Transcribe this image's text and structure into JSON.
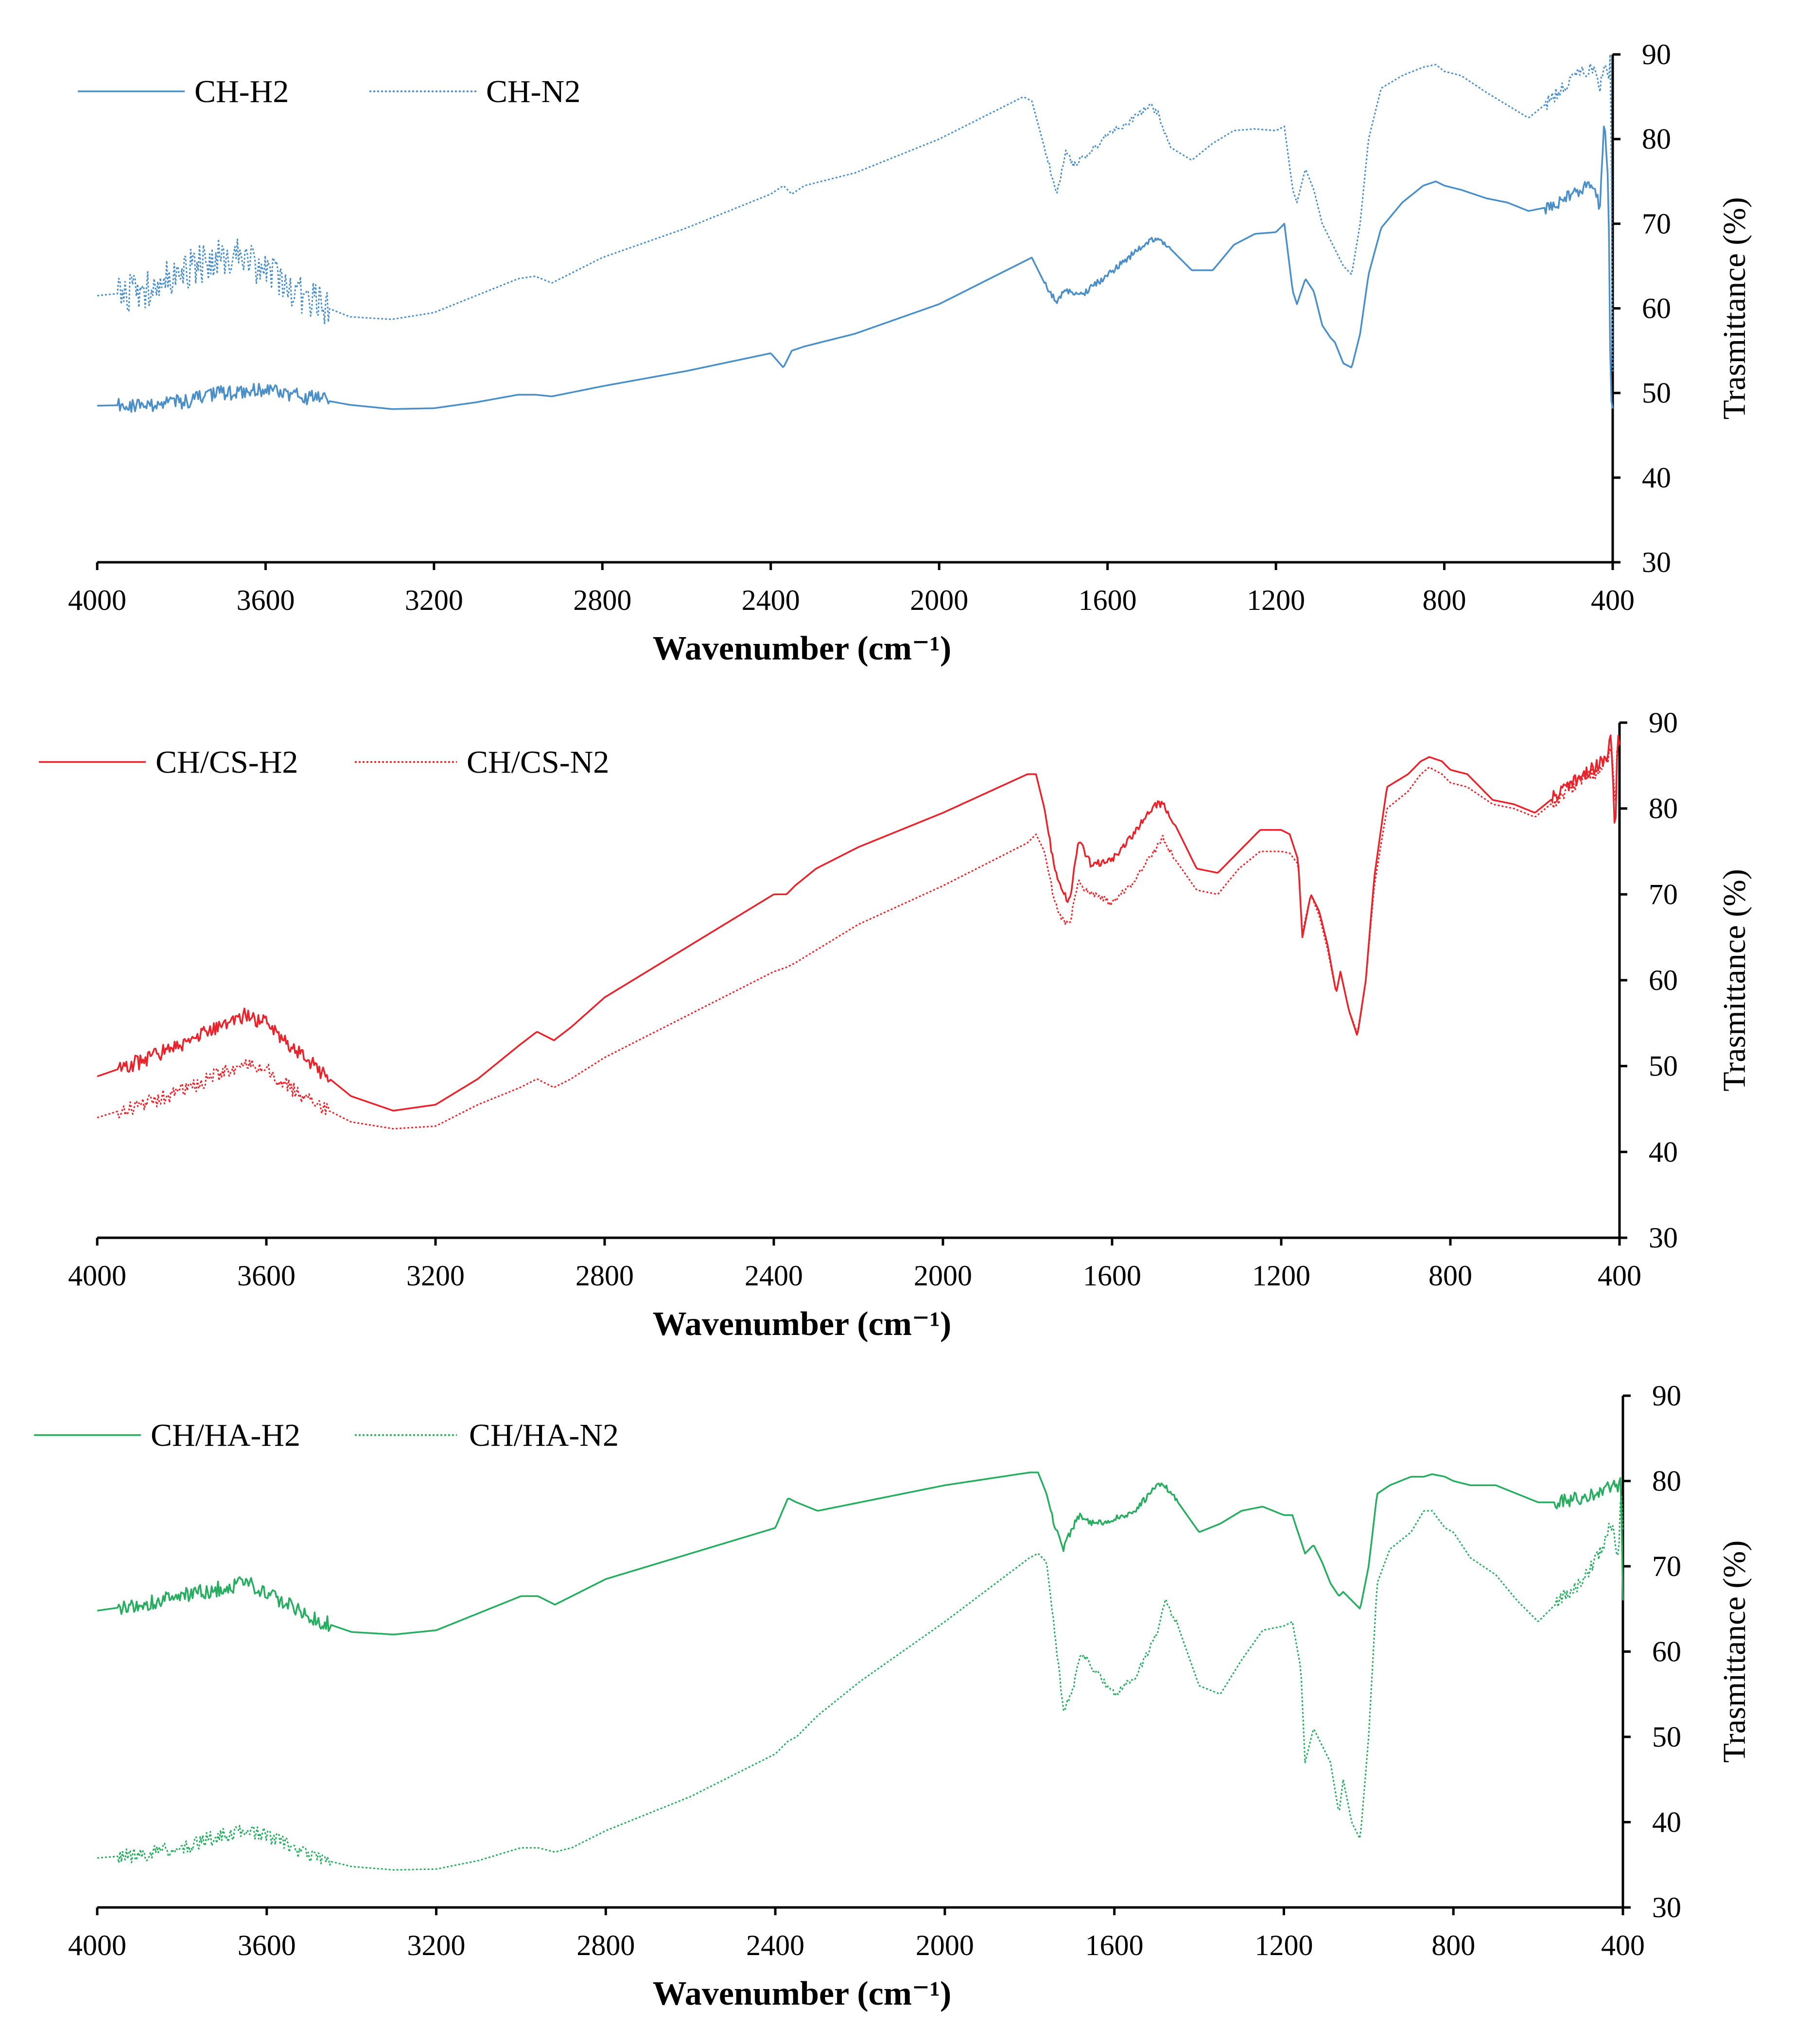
{
  "chart_data": [
    {
      "type": "line",
      "xlabel": "Wavenumber (cm⁻¹)",
      "ylabel": "Trasmittance (%)",
      "xlim": [
        4000,
        400
      ],
      "ylim": [
        30,
        90
      ],
      "x_ticks": [
        "4000",
        "3600",
        "3200",
        "2800",
        "2400",
        "2000",
        "1600",
        "1200",
        "800",
        "400"
      ],
      "y_ticks": [
        "30",
        "40",
        "50",
        "60",
        "70",
        "80",
        "90"
      ],
      "y_axis_side": "right",
      "legend_position": "top-left",
      "color": "#4a8fc8",
      "series": [
        {
          "name": "CH-H2",
          "style": "solid",
          "x": [
            4000,
            3900,
            3800,
            3700,
            3600,
            3500,
            3400,
            3300,
            3200,
            3100,
            3000,
            2960,
            2920,
            2800,
            2600,
            2400,
            2370,
            2350,
            2320,
            2200,
            2000,
            1800,
            1780,
            1750,
            1720,
            1700,
            1680,
            1650,
            1600,
            1550,
            1500,
            1480,
            1450,
            1400,
            1350,
            1300,
            1250,
            1200,
            1180,
            1160,
            1150,
            1130,
            1110,
            1090,
            1070,
            1060,
            1040,
            1020,
            1000,
            980,
            950,
            900,
            850,
            820,
            800,
            760,
            700,
            650,
            600,
            550,
            500,
            450,
            430,
            420,
            410,
            405,
            400
          ],
          "y": [
            48.5,
            48.6,
            49.0,
            50.0,
            50.3,
            49.5,
            48.6,
            48.1,
            48.2,
            48.9,
            49.8,
            49.8,
            49.6,
            50.8,
            52.6,
            54.7,
            53.0,
            55.0,
            55.5,
            57.0,
            60.5,
            65.5,
            66.0,
            63.0,
            60.5,
            62.5,
            61.5,
            62.0,
            64.0,
            66.0,
            68.0,
            68.5,
            67.0,
            64.5,
            64.5,
            67.5,
            68.8,
            69.0,
            70.0,
            62.0,
            60.5,
            63.5,
            62.0,
            58.0,
            56.5,
            56.0,
            53.5,
            53.0,
            57.0,
            64.0,
            69.5,
            72.5,
            74.5,
            75.0,
            74.5,
            74.0,
            73.0,
            72.5,
            71.5,
            72.0,
            73.5,
            74.5,
            72.0,
            82.0,
            74.0,
            50.0,
            48.0
          ]
        },
        {
          "name": "CH-N2",
          "style": "dotted",
          "x": [
            4000,
            3900,
            3800,
            3700,
            3650,
            3600,
            3500,
            3400,
            3300,
            3200,
            3100,
            3000,
            2960,
            2920,
            2800,
            2600,
            2400,
            2370,
            2350,
            2320,
            2200,
            2000,
            1800,
            1780,
            1750,
            1720,
            1700,
            1680,
            1650,
            1600,
            1550,
            1500,
            1480,
            1450,
            1400,
            1350,
            1300,
            1250,
            1200,
            1180,
            1160,
            1150,
            1130,
            1110,
            1090,
            1070,
            1060,
            1040,
            1020,
            1000,
            980,
            950,
            900,
            850,
            820,
            800,
            760,
            700,
            650,
            600,
            550,
            500,
            450,
            430,
            420,
            410,
            405,
            400
          ],
          "y": [
            61.5,
            62.0,
            64.5,
            66.0,
            66.0,
            64.5,
            61.0,
            59.0,
            58.7,
            59.5,
            61.5,
            63.5,
            63.8,
            63.0,
            66.0,
            69.5,
            73.5,
            74.5,
            73.5,
            74.5,
            76.0,
            80.0,
            85.0,
            84.5,
            79.0,
            73.5,
            78.5,
            77.0,
            78.0,
            80.5,
            82.0,
            84.0,
            83.0,
            79.0,
            77.5,
            79.5,
            81.0,
            81.2,
            81.0,
            81.5,
            74.0,
            72.5,
            76.5,
            74.0,
            70.0,
            68.0,
            67.0,
            65.0,
            64.0,
            70.0,
            80.0,
            86.0,
            87.5,
            88.5,
            88.8,
            88.0,
            87.5,
            85.5,
            84.0,
            82.5,
            84.5,
            87.0,
            88.5,
            86.0,
            89.0,
            87.0,
            90.0,
            52.0
          ]
        }
      ]
    },
    {
      "type": "line",
      "xlabel": "Wavenumber (cm⁻¹)",
      "ylabel": "Trasmittance (%)",
      "xlim": [
        4000,
        400
      ],
      "ylim": [
        30,
        90
      ],
      "x_ticks": [
        "4000",
        "3600",
        "3200",
        "2800",
        "2400",
        "2000",
        "1600",
        "1200",
        "800",
        "400"
      ],
      "y_ticks": [
        "30",
        "40",
        "50",
        "60",
        "70",
        "80",
        "90"
      ],
      "y_axis_side": "right",
      "legend_position": "top-left",
      "color": "#e8232b",
      "series": [
        {
          "name": "CH/CS-H2",
          "style": "solid",
          "x": [
            4000,
            3900,
            3800,
            3700,
            3650,
            3600,
            3500,
            3400,
            3300,
            3200,
            3100,
            3000,
            2960,
            2920,
            2880,
            2800,
            2600,
            2400,
            2370,
            2350,
            2300,
            2200,
            2000,
            1800,
            1780,
            1760,
            1740,
            1720,
            1700,
            1680,
            1650,
            1600,
            1550,
            1500,
            1480,
            1450,
            1400,
            1350,
            1300,
            1250,
            1200,
            1180,
            1160,
            1150,
            1130,
            1110,
            1090,
            1070,
            1060,
            1040,
            1020,
            1000,
            980,
            950,
            900,
            870,
            850,
            820,
            800,
            760,
            700,
            650,
            600,
            550,
            500,
            450,
            430,
            420,
            410,
            405,
            400
          ],
          "y": [
            48.8,
            50.5,
            52.5,
            55.0,
            56.0,
            55.0,
            50.5,
            46.5,
            44.8,
            45.5,
            48.5,
            52.5,
            54.0,
            53.0,
            54.5,
            58.0,
            64.0,
            70.0,
            70.0,
            71.0,
            73.0,
            75.5,
            79.5,
            84.0,
            84.0,
            80.0,
            74.0,
            70.5,
            69.0,
            76.5,
            73.5,
            74.0,
            77.0,
            80.5,
            80.5,
            78.0,
            73.0,
            72.5,
            75.0,
            77.5,
            77.5,
            77.0,
            74.0,
            65.0,
            70.0,
            68.0,
            64.0,
            58.5,
            61.0,
            56.5,
            53.5,
            60.0,
            72.0,
            82.5,
            84.0,
            85.5,
            86.0,
            85.5,
            84.5,
            84.0,
            81.0,
            80.5,
            79.5,
            81.5,
            83.5,
            85.0,
            86.0,
            88.0,
            76.0,
            89.0,
            88.0
          ]
        },
        {
          "name": "CH/CS-N2",
          "style": "dotted",
          "x": [
            4000,
            3900,
            3800,
            3700,
            3650,
            3600,
            3500,
            3400,
            3300,
            3200,
            3100,
            3000,
            2960,
            2920,
            2880,
            2800,
            2600,
            2400,
            2370,
            2350,
            2300,
            2200,
            2000,
            1800,
            1780,
            1760,
            1740,
            1720,
            1700,
            1680,
            1650,
            1600,
            1550,
            1500,
            1480,
            1450,
            1400,
            1350,
            1300,
            1250,
            1200,
            1180,
            1160,
            1150,
            1130,
            1110,
            1090,
            1070,
            1060,
            1040,
            1020,
            1000,
            980,
            950,
            900,
            870,
            850,
            820,
            800,
            760,
            700,
            650,
            600,
            550,
            500,
            450,
            430,
            420,
            410,
            405,
            400
          ],
          "y": [
            44.0,
            45.5,
            47.0,
            49.5,
            50.0,
            49.5,
            46.0,
            43.5,
            42.7,
            43.0,
            45.5,
            47.5,
            48.5,
            47.5,
            48.5,
            51.0,
            56.0,
            61.0,
            61.5,
            62.0,
            63.5,
            66.5,
            71.0,
            76.0,
            77.0,
            75.0,
            70.0,
            67.0,
            66.5,
            71.5,
            70.0,
            69.0,
            71.5,
            75.0,
            76.5,
            74.0,
            70.5,
            70.0,
            73.0,
            75.0,
            75.0,
            74.8,
            73.5,
            65.5,
            70.0,
            67.5,
            63.5,
            58.5,
            61.0,
            56.5,
            53.8,
            60.0,
            71.0,
            80.0,
            82.0,
            84.0,
            84.8,
            84.0,
            83.0,
            82.5,
            80.5,
            80.0,
            79.0,
            81.0,
            83.0,
            84.5,
            85.5,
            87.5,
            80.0,
            88.0,
            87.5
          ]
        }
      ]
    },
    {
      "type": "line",
      "xlabel": "Wavenumber (cm⁻¹)",
      "ylabel": "Trasmittance (%)",
      "xlim": [
        4000,
        400
      ],
      "ylim": [
        30,
        90
      ],
      "x_ticks": [
        "4000",
        "3600",
        "3200",
        "2800",
        "2400",
        "2000",
        "1600",
        "1200",
        "800",
        "400"
      ],
      "y_ticks": [
        "30",
        "40",
        "50",
        "60",
        "70",
        "80",
        "90"
      ],
      "y_axis_side": "right",
      "legend_position": "top-left",
      "color": "#27ad5f",
      "series": [
        {
          "name": "CH/HA-H2",
          "style": "solid",
          "x": [
            4000,
            3900,
            3800,
            3700,
            3650,
            3600,
            3500,
            3400,
            3300,
            3200,
            3100,
            3000,
            2960,
            2920,
            2880,
            2800,
            2600,
            2400,
            2370,
            2350,
            2300,
            2200,
            2000,
            1800,
            1780,
            1760,
            1740,
            1720,
            1700,
            1680,
            1650,
            1600,
            1550,
            1500,
            1480,
            1450,
            1400,
            1350,
            1300,
            1250,
            1200,
            1180,
            1160,
            1150,
            1130,
            1110,
            1090,
            1070,
            1060,
            1040,
            1020,
            1000,
            980,
            950,
            900,
            870,
            850,
            820,
            800,
            760,
            700,
            650,
            600,
            550,
            500,
            450,
            430,
            420,
            410,
            405,
            400
          ],
          "y": [
            64.8,
            65.5,
            66.5,
            67.5,
            68.0,
            67.0,
            64.0,
            62.3,
            62.0,
            62.5,
            64.5,
            66.5,
            66.5,
            65.5,
            66.5,
            68.5,
            71.5,
            74.5,
            78.0,
            77.5,
            76.5,
            77.5,
            79.5,
            81.0,
            81.0,
            78.5,
            74.5,
            72.0,
            74.5,
            76.0,
            75.0,
            75.5,
            76.5,
            79.5,
            79.5,
            77.5,
            74.0,
            75.0,
            76.5,
            77.0,
            76.0,
            76.0,
            73.0,
            71.5,
            72.5,
            70.5,
            68.0,
            66.5,
            67.0,
            66.0,
            65.0,
            70.0,
            78.5,
            79.5,
            80.5,
            80.5,
            80.8,
            80.5,
            80.0,
            79.5,
            79.5,
            78.5,
            77.5,
            77.5,
            78.0,
            78.5,
            79.5,
            80.0,
            79.0,
            81.5,
            66.0
          ]
        },
        {
          "name": "CH/HA-N2",
          "style": "dotted",
          "x": [
            4000,
            3900,
            3800,
            3700,
            3650,
            3600,
            3500,
            3400,
            3300,
            3200,
            3100,
            3000,
            2960,
            2920,
            2880,
            2800,
            2600,
            2400,
            2370,
            2350,
            2300,
            2200,
            2000,
            1800,
            1780,
            1760,
            1740,
            1720,
            1700,
            1680,
            1650,
            1600,
            1550,
            1500,
            1480,
            1450,
            1400,
            1350,
            1300,
            1250,
            1200,
            1180,
            1160,
            1150,
            1130,
            1110,
            1090,
            1070,
            1060,
            1040,
            1020,
            1000,
            980,
            950,
            900,
            870,
            850,
            820,
            800,
            760,
            700,
            650,
            600,
            550,
            500,
            450,
            430,
            420,
            410,
            405,
            400
          ],
          "y": [
            35.8,
            36.2,
            37.0,
            38.5,
            39.0,
            38.5,
            36.0,
            34.8,
            34.4,
            34.5,
            35.5,
            37.0,
            37.0,
            36.5,
            37.0,
            39.0,
            43.0,
            48.0,
            49.5,
            50.0,
            52.5,
            56.5,
            63.5,
            71.0,
            71.5,
            70.5,
            62.0,
            53.0,
            55.0,
            60.0,
            58.0,
            55.0,
            57.0,
            62.0,
            66.0,
            63.0,
            56.0,
            55.0,
            59.0,
            62.5,
            63.0,
            63.5,
            58.0,
            47.0,
            51.0,
            49.0,
            47.0,
            41.0,
            45.0,
            40.0,
            38.0,
            50.0,
            68.0,
            72.0,
            74.0,
            76.5,
            76.5,
            74.5,
            74.0,
            71.0,
            69.0,
            66.0,
            63.5,
            66.0,
            68.0,
            72.0,
            75.0,
            74.0,
            70.5,
            80.0,
            74.0
          ]
        }
      ]
    }
  ]
}
